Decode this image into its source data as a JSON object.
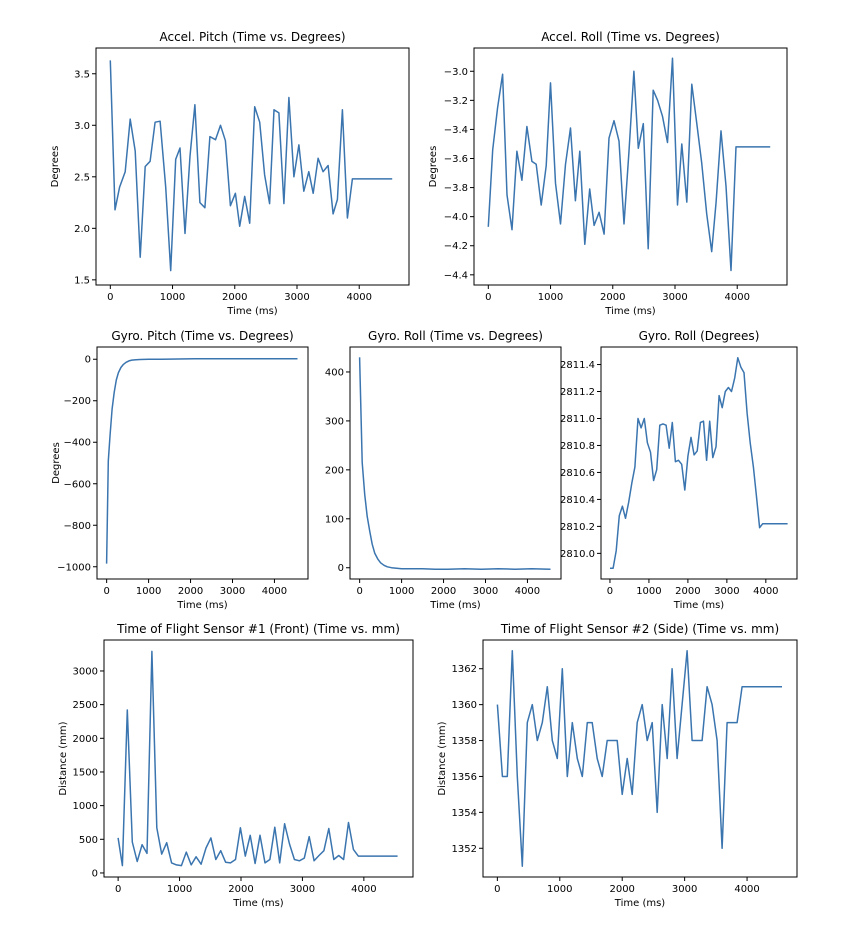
{
  "chart_data": [
    {
      "id": "accel-pitch",
      "type": "line",
      "title": "Accel. Pitch (Time vs. Degrees)",
      "xlabel": "Time (ms)",
      "ylabel": "Degrees",
      "xlim": [
        -230,
        4800
      ],
      "ylim": [
        1.45,
        3.75
      ],
      "xticks": [
        0,
        1000,
        2000,
        3000,
        4000
      ],
      "xtick_labels": [
        "0",
        "1000",
        "2000",
        "3000",
        "4000"
      ],
      "yticks": [
        1.5,
        2.0,
        2.5,
        3.0,
        3.5
      ],
      "ytick_labels": [
        "1.5",
        "2.0",
        "2.5",
        "3.0",
        "3.5"
      ],
      "series": [
        {
          "name": "Accel. Pitch",
          "x": [
            0,
            75,
            150,
            240,
            320,
            400,
            480,
            560,
            640,
            720,
            800,
            890,
            970,
            1050,
            1120,
            1200,
            1280,
            1360,
            1440,
            1520,
            1600,
            1690,
            1770,
            1850,
            1930,
            2010,
            2080,
            2160,
            2240,
            2320,
            2400,
            2480,
            2560,
            2630,
            2710,
            2790,
            2870,
            2950,
            3030,
            3110,
            3190,
            3260,
            3340,
            3420,
            3500,
            3580,
            3650,
            3730,
            3810,
            3890,
            3970,
            4050,
            4130,
            4210,
            4290,
            4370,
            4450,
            4530
          ],
          "values": [
            3.63,
            2.18,
            2.4,
            2.55,
            3.06,
            2.75,
            1.72,
            2.6,
            2.65,
            3.03,
            3.04,
            2.4,
            1.59,
            2.67,
            2.78,
            1.95,
            2.7,
            3.2,
            2.25,
            2.2,
            2.89,
            2.86,
            3.0,
            2.85,
            2.22,
            2.34,
            2.02,
            2.31,
            2.05,
            3.18,
            3.03,
            2.52,
            2.24,
            3.15,
            3.12,
            2.24,
            3.27,
            2.5,
            2.81,
            2.36,
            2.55,
            2.34,
            2.68,
            2.55,
            2.61,
            2.14,
            2.28,
            3.15,
            2.1,
            2.48,
            2.48,
            2.48,
            2.48,
            2.48,
            2.48,
            2.48,
            2.48,
            2.48
          ]
        }
      ]
    },
    {
      "id": "accel-roll",
      "type": "line",
      "title": "Accel. Roll (Time vs. Degrees)",
      "xlabel": "Time (ms)",
      "ylabel": "Degrees",
      "xlim": [
        -230,
        4800
      ],
      "ylim": [
        -4.47,
        -2.84
      ],
      "xticks": [
        0,
        1000,
        2000,
        3000,
        4000
      ],
      "xtick_labels": [
        "0",
        "1000",
        "2000",
        "3000",
        "4000"
      ],
      "yticks": [
        -4.4,
        -4.2,
        -4.0,
        -3.8,
        -3.6,
        -3.4,
        -3.2,
        -3.0
      ],
      "ytick_labels": [
        "−4.4",
        "−4.2",
        "−4.0",
        "−3.8",
        "−3.6",
        "−3.4",
        "−3.2",
        "−3.0"
      ],
      "series": [
        {
          "name": "Accel. Roll",
          "x": [
            0,
            70,
            150,
            230,
            300,
            380,
            460,
            540,
            620,
            700,
            770,
            850,
            930,
            1000,
            1080,
            1160,
            1240,
            1320,
            1400,
            1470,
            1550,
            1630,
            1700,
            1780,
            1860,
            1940,
            2020,
            2100,
            2180,
            2260,
            2340,
            2410,
            2490,
            2570,
            2650,
            2720,
            2800,
            2880,
            2960,
            3040,
            3110,
            3190,
            3270,
            3350,
            3430,
            3510,
            3590,
            3660,
            3740,
            3820,
            3900,
            3980,
            4060,
            4140,
            4220,
            4290,
            4370,
            4450,
            4530
          ],
          "values": [
            -4.07,
            -3.54,
            -3.25,
            -3.02,
            -3.85,
            -4.09,
            -3.55,
            -3.75,
            -3.38,
            -3.62,
            -3.64,
            -3.92,
            -3.65,
            -3.08,
            -3.77,
            -4.05,
            -3.64,
            -3.39,
            -3.89,
            -3.55,
            -4.19,
            -3.81,
            -4.06,
            -3.97,
            -4.12,
            -3.46,
            -3.34,
            -3.48,
            -4.05,
            -3.56,
            -3.0,
            -3.53,
            -3.36,
            -4.22,
            -3.13,
            -3.2,
            -3.31,
            -3.49,
            -2.91,
            -3.92,
            -3.5,
            -3.9,
            -3.09,
            -3.36,
            -3.63,
            -3.98,
            -4.24,
            -3.9,
            -3.41,
            -3.79,
            -4.37,
            -3.52,
            -3.52,
            -3.52,
            -3.52,
            -3.52,
            -3.52,
            -3.52,
            -3.52
          ]
        }
      ]
    },
    {
      "id": "gyro-pitch",
      "type": "line",
      "title": "Gyro. Pitch (Time vs. Degrees)",
      "xlabel": "Time (ms)",
      "ylabel": "Degrees",
      "xlim": [
        -230,
        4800
      ],
      "ylim": [
        -1059,
        59
      ],
      "xticks": [
        0,
        1000,
        2000,
        3000,
        4000
      ],
      "xtick_labels": [
        "0",
        "1000",
        "2000",
        "3000",
        "4000"
      ],
      "yticks": [
        -1000,
        -800,
        -600,
        -400,
        -200,
        0
      ],
      "ytick_labels": [
        "−1000",
        "−800",
        "−600",
        "−400",
        "−200",
        "0"
      ],
      "series": [
        {
          "name": "Gyro. Pitch",
          "x": [
            0,
            40,
            80,
            130,
            180,
            230,
            280,
            340,
            400,
            460,
            530,
            600,
            700,
            800,
            1000,
            1300,
            1700,
            2100,
            2600,
            3100,
            3600,
            4100,
            4550
          ],
          "values": [
            -985,
            -490,
            -370,
            -240,
            -160,
            -100,
            -65,
            -40,
            -25,
            -15,
            -8,
            -4,
            -2,
            -1,
            0,
            0,
            1,
            2,
            2,
            2,
            2,
            2,
            2
          ]
        }
      ]
    },
    {
      "id": "gyro-roll-time",
      "type": "line",
      "title": "Gyro. Roll (Time vs. Degrees)",
      "xlabel": "Time (ms)",
      "ylabel": "",
      "xlim": [
        -230,
        4800
      ],
      "ylim": [
        -23,
        451
      ],
      "xticks": [
        0,
        1000,
        2000,
        3000,
        4000
      ],
      "xtick_labels": [
        "0",
        "1000",
        "2000",
        "3000",
        "4000"
      ],
      "yticks": [
        0,
        100,
        200,
        300,
        400
      ],
      "ytick_labels": [
        "0",
        "100",
        "200",
        "300",
        "400"
      ],
      "series": [
        {
          "name": "Gyro. Roll",
          "x": [
            0,
            60,
            120,
            180,
            240,
            300,
            360,
            430,
            500,
            580,
            660,
            760,
            880,
            1000,
            1200,
            1500,
            1800,
            2100,
            2500,
            2900,
            3300,
            3700,
            4100,
            4550
          ],
          "values": [
            430,
            215,
            150,
            105,
            75,
            48,
            30,
            18,
            10,
            5,
            2,
            0,
            -1,
            -2,
            -2,
            -2,
            -3,
            -3,
            -2,
            -3,
            -2,
            -3,
            -2,
            -3
          ]
        }
      ]
    },
    {
      "id": "gyro-roll-degrees",
      "type": "line",
      "title": "Gyro. Roll (Degrees)",
      "xlabel": "Time (ms)",
      "ylabel": "",
      "xlim": [
        -230,
        4800
      ],
      "ylim": [
        2809.81,
        2811.53
      ],
      "xticks": [
        0,
        1000,
        2000,
        3000,
        4000
      ],
      "xtick_labels": [
        "0",
        "1000",
        "2000",
        "3000",
        "4000"
      ],
      "yticks": [
        2810.0,
        2810.2,
        2810.4,
        2810.6,
        2810.8,
        2811.0,
        2811.2,
        2811.4
      ],
      "ytick_labels": [
        "2810.0",
        "2810.2",
        "2810.4",
        "2810.6",
        "2810.8",
        "2811.0",
        "2811.2",
        "2811.4"
      ],
      "series": [
        {
          "name": "Gyro. Roll",
          "x": [
            0,
            80,
            160,
            240,
            320,
            400,
            480,
            560,
            640,
            720,
            800,
            880,
            960,
            1040,
            1120,
            1200,
            1280,
            1360,
            1440,
            1520,
            1600,
            1680,
            1760,
            1840,
            1920,
            2000,
            2080,
            2160,
            2240,
            2320,
            2400,
            2480,
            2560,
            2640,
            2720,
            2800,
            2880,
            2960,
            3040,
            3120,
            3200,
            3280,
            3360,
            3440,
            3520,
            3600,
            3680,
            3760,
            3840,
            3920,
            4000,
            4080,
            4160,
            4240,
            4320,
            4400,
            4480,
            4560
          ],
          "values": [
            2809.89,
            2809.89,
            2810.02,
            2810.28,
            2810.35,
            2810.26,
            2810.38,
            2810.52,
            2810.64,
            2811.0,
            2810.93,
            2811.0,
            2810.82,
            2810.75,
            2810.54,
            2810.62,
            2810.95,
            2810.96,
            2810.95,
            2810.78,
            2810.97,
            2810.68,
            2810.69,
            2810.66,
            2810.47,
            2810.72,
            2810.86,
            2810.73,
            2810.76,
            2810.97,
            2810.98,
            2810.69,
            2810.98,
            2810.71,
            2810.79,
            2811.17,
            2811.08,
            2811.2,
            2811.23,
            2811.2,
            2811.3,
            2811.45,
            2811.38,
            2811.34,
            2811.04,
            2810.82,
            2810.64,
            2810.42,
            2810.19,
            2810.22,
            2810.22,
            2810.22,
            2810.22,
            2810.22,
            2810.22,
            2810.22,
            2810.22,
            2810.22
          ]
        }
      ]
    },
    {
      "id": "tof-front",
      "type": "line",
      "title": "Time of Flight Sensor #1 (Front) (Time vs. mm)",
      "xlabel": "Time (ms)",
      "ylabel": "Distance (mm)",
      "xlim": [
        -230,
        4800
      ],
      "ylim": [
        -60,
        3460
      ],
      "xticks": [
        0,
        1000,
        2000,
        3000,
        4000
      ],
      "xtick_labels": [
        "0",
        "1000",
        "2000",
        "3000",
        "4000"
      ],
      "yticks": [
        0,
        500,
        1000,
        1500,
        2000,
        2500,
        3000
      ],
      "ytick_labels": [
        "0",
        "500",
        "1000",
        "1500",
        "2000",
        "2500",
        "3000"
      ],
      "series": [
        {
          "name": "ToF Front",
          "x": [
            0,
            70,
            150,
            230,
            310,
            390,
            470,
            550,
            630,
            710,
            790,
            870,
            950,
            1030,
            1110,
            1190,
            1270,
            1350,
            1430,
            1510,
            1590,
            1670,
            1750,
            1830,
            1910,
            1990,
            2070,
            2150,
            2230,
            2310,
            2390,
            2470,
            2550,
            2630,
            2710,
            2790,
            2870,
            2950,
            3030,
            3110,
            3190,
            3270,
            3350,
            3430,
            3510,
            3590,
            3670,
            3750,
            3830,
            3910,
            3990,
            4070,
            4150,
            4230,
            4310,
            4390,
            4470,
            4550
          ],
          "values": [
            520,
            110,
            2420,
            460,
            170,
            420,
            290,
            3290,
            670,
            280,
            450,
            150,
            120,
            110,
            310,
            120,
            240,
            130,
            370,
            520,
            200,
            330,
            160,
            150,
            200,
            670,
            250,
            560,
            140,
            560,
            150,
            200,
            680,
            150,
            730,
            430,
            200,
            180,
            220,
            540,
            180,
            260,
            330,
            660,
            200,
            260,
            200,
            750,
            350,
            250,
            250,
            250,
            250,
            250,
            250,
            250,
            250,
            250
          ]
        }
      ]
    },
    {
      "id": "tof-side",
      "type": "line",
      "title": "Time of Flight Sensor #2 (Side) (Time vs. mm)",
      "xlabel": "Time (ms)",
      "ylabel": "Distance (mm)",
      "xlim": [
        -230,
        4800
      ],
      "ylim": [
        1350.4,
        1363.6
      ],
      "xticks": [
        0,
        1000,
        2000,
        3000,
        4000
      ],
      "xtick_labels": [
        "0",
        "1000",
        "2000",
        "3000",
        "4000"
      ],
      "yticks": [
        1352,
        1354,
        1356,
        1358,
        1360,
        1362
      ],
      "ytick_labels": [
        "1352",
        "1354",
        "1356",
        "1358",
        "1360",
        "1362"
      ],
      "series": [
        {
          "name": "ToF Side",
          "x": [
            0,
            80,
            160,
            240,
            320,
            400,
            480,
            560,
            640,
            720,
            800,
            880,
            960,
            1040,
            1120,
            1200,
            1280,
            1360,
            1440,
            1520,
            1600,
            1680,
            1760,
            1840,
            1920,
            2000,
            2080,
            2160,
            2240,
            2320,
            2400,
            2480,
            2560,
            2640,
            2720,
            2800,
            2880,
            2960,
            3040,
            3120,
            3200,
            3280,
            3360,
            3440,
            3520,
            3600,
            3680,
            3760,
            3840,
            3920,
            4000,
            4080,
            4160,
            4240,
            4320,
            4400,
            4480,
            4560
          ],
          "values": [
            1360,
            1356,
            1356,
            1363,
            1356,
            1351,
            1359,
            1360,
            1358,
            1359,
            1361,
            1358,
            1357,
            1362,
            1356,
            1359,
            1357,
            1356,
            1359,
            1359,
            1357,
            1356,
            1358,
            1358,
            1358,
            1355,
            1357,
            1355,
            1359,
            1360,
            1358,
            1359,
            1354,
            1360,
            1357,
            1362,
            1357,
            1360,
            1363,
            1358,
            1358,
            1358,
            1361,
            1360,
            1358,
            1352,
            1359,
            1359,
            1359,
            1361,
            1361,
            1361,
            1361,
            1361,
            1361,
            1361,
            1361,
            1361
          ]
        }
      ]
    }
  ]
}
